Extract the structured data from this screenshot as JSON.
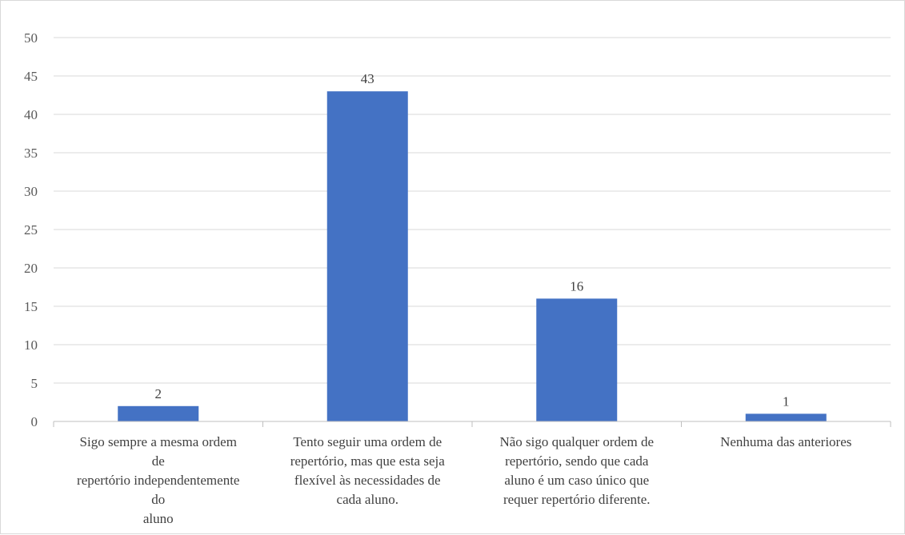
{
  "chart_data": {
    "type": "bar",
    "categories": [
      [
        "Sigo sempre a mesma ordem",
        "de",
        "repertório independentemente",
        "do",
        "aluno"
      ],
      [
        "Tento seguir uma ordem de",
        "repertório, mas que esta seja",
        "flexível às necessidades de",
        "cada aluno."
      ],
      [
        "Não sigo qualquer ordem de",
        "repertório, sendo que cada",
        "aluno é um caso único que",
        "requer repertório diferente."
      ],
      [
        "Nenhuma das anteriores"
      ]
    ],
    "values": [
      2,
      43,
      16,
      1
    ],
    "data_labels": [
      "2",
      "43",
      "16",
      "1"
    ],
    "ylim": [
      0,
      50
    ],
    "yticks": [
      "0",
      "5",
      "10",
      "15",
      "20",
      "25",
      "30",
      "35",
      "40",
      "45",
      "50"
    ],
    "grid": true,
    "legend": "none",
    "bar_color": "#4472C4",
    "grid_color": "#d9d9d9",
    "axis_color": "#bfbfbf"
  }
}
